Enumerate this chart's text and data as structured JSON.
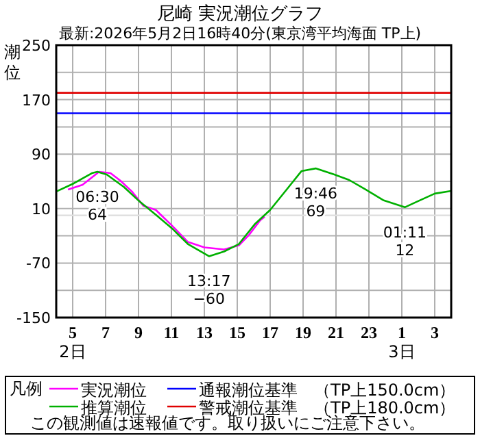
{
  "chart_data": {
    "type": "line",
    "title": "尼崎 実況潮位グラフ",
    "subtitle": "最新:2026年5月2日16時40分(東京湾平均海面 TP上)",
    "ylabel": "潮位",
    "legend_title": "凡例",
    "legend": "bottom",
    "grid": true,
    "marker": "none",
    "line_style": "solid",
    "xlim": [
      "2026-05-02T04:00",
      "2026-05-03T04:00"
    ],
    "xticks": [
      {
        "value": "2026-05-02T05:00",
        "label": "5"
      },
      {
        "value": "2026-05-02T07:00",
        "label": "7"
      },
      {
        "value": "2026-05-02T09:00",
        "label": "9"
      },
      {
        "value": "2026-05-02T11:00",
        "label": "11"
      },
      {
        "value": "2026-05-02T13:00",
        "label": "13"
      },
      {
        "value": "2026-05-02T15:00",
        "label": "15"
      },
      {
        "value": "2026-05-02T17:00",
        "label": "17"
      },
      {
        "value": "2026-05-02T19:00",
        "label": "19"
      },
      {
        "value": "2026-05-02T21:00",
        "label": "21"
      },
      {
        "value": "2026-05-02T23:00",
        "label": "23"
      },
      {
        "value": "2026-05-03T01:00",
        "label": "1"
      },
      {
        "value": "2026-05-03T03:00",
        "label": "3"
      }
    ],
    "ylim": [
      -150,
      250
    ],
    "yticks": [
      250,
      {
        "value": 210,
        "label": null
      },
      170,
      {
        "value": 130,
        "label": null
      },
      90,
      {
        "value": 50,
        "label": null
      },
      10,
      {
        "value": -30,
        "label": null
      },
      -70,
      {
        "value": -110,
        "label": null
      },
      -150
    ],
    "series": [
      {
        "name": "実況潮位",
        "color": "#ff00ff",
        "x": [
          "2026-05-02T04:43",
          "2026-05-02T05:36",
          "2026-05-02T06:36",
          "2026-05-02T07:18",
          "2026-05-02T07:54",
          "2026-05-02T08:36",
          "2026-05-02T09:18",
          "2026-05-02T10:03",
          "2026-05-02T11:02",
          "2026-05-02T12:00",
          "2026-05-02T13:00",
          "2026-05-02T14:12",
          "2026-05-02T15:06",
          "2026-05-02T15:42",
          "2026-05-02T16:24",
          "2026-05-02T16:40"
        ],
        "values": [
          38,
          45,
          64,
          62,
          51,
          35,
          14,
          8,
          -15,
          -39,
          -47,
          -50,
          -44,
          -29,
          -7,
          -2
        ]
      },
      {
        "name": "推算潮位",
        "color": "#00b000",
        "x": [
          "2026-05-02T04:00",
          "2026-05-02T05:04",
          "2026-05-02T06:10",
          "2026-05-02T06:30",
          "2026-05-02T07:04",
          "2026-05-02T08:06",
          "2026-05-02T09:05",
          "2026-05-02T10:03",
          "2026-05-02T11:02",
          "2026-05-02T12:00",
          "2026-05-02T13:17",
          "2026-05-02T14:12",
          "2026-05-02T15:06",
          "2026-05-02T16:06",
          "2026-05-02T17:00",
          "2026-05-02T18:00",
          "2026-05-02T18:54",
          "2026-05-02T19:46",
          "2026-05-02T20:54",
          "2026-05-02T21:48",
          "2026-05-02T22:48",
          "2026-05-02T23:54",
          "2026-05-03T01:11",
          "2026-05-03T01:54",
          "2026-05-03T03:00",
          "2026-05-03T04:00"
        ],
        "values": [
          35,
          47,
          62,
          64,
          60,
          42,
          20,
          1,
          -19,
          -42,
          -60,
          -53,
          -42,
          -12,
          8,
          38,
          65,
          69,
          60,
          52,
          38,
          22,
          12,
          20,
          32,
          36
        ]
      }
    ],
    "ref_lines": [
      {
        "axis": "y",
        "value": 180,
        "label": "警戒潮位基準　（TP上180.0cm）",
        "color": "#e00000"
      },
      {
        "axis": "y",
        "value": 150,
        "label": "通報潮位基準　（TP上150.0cm）",
        "color": "#0000ff"
      },
      {
        "axis": "y",
        "value": 0,
        "color": "#e0e0e0"
      }
    ],
    "annotations": [
      {
        "text": "06:30\n64",
        "x": "2026-05-02T06:30",
        "y": 64
      },
      {
        "text": "13:17\n−60",
        "x": "2026-05-02T13:17",
        "y": -60
      },
      {
        "text": "19:46\n69",
        "x": "2026-05-02T19:46",
        "y": 69
      },
      {
        "text": "01:11\n12",
        "x": "2026-05-03T01:11",
        "y": 12
      },
      "2日",
      "3日",
      "この観測値は速報値です。取り扱いにご注意下さい。"
    ]
  }
}
